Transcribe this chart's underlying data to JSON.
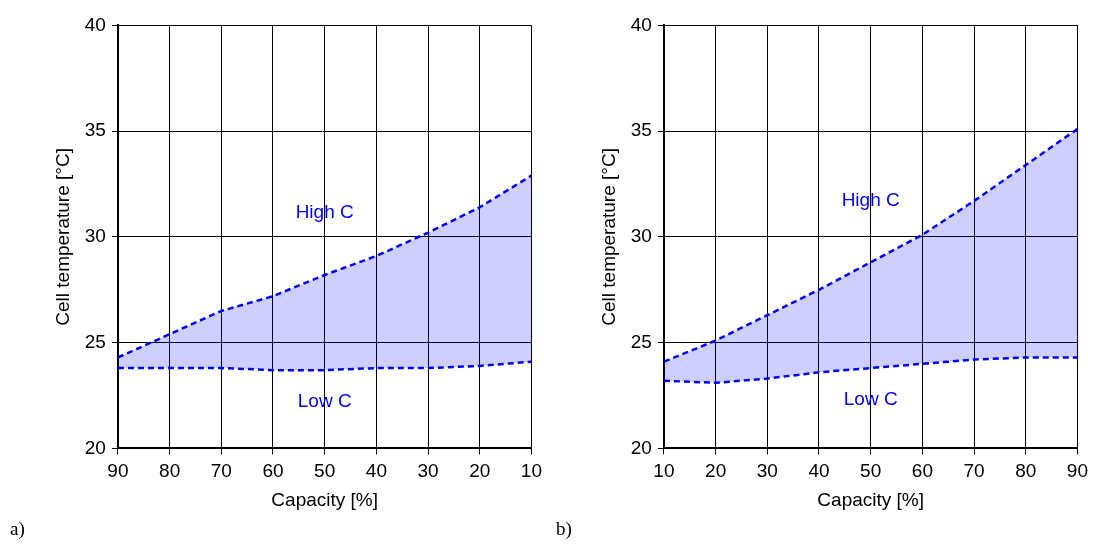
{
  "chart_data": [
    {
      "type": "line",
      "xlabel": "Capacity [%]",
      "ylabel": "Cell temperature [°C]",
      "xlim": [
        90,
        10
      ],
      "xticks": [
        90,
        80,
        70,
        60,
        50,
        40,
        30,
        20,
        10
      ],
      "ylim": [
        20,
        40
      ],
      "yticks": [
        20,
        25,
        30,
        35,
        40
      ],
      "grid": true,
      "line_style": "dashed",
      "marker": "none",
      "series": [
        {
          "name": "High C",
          "color": "#0000ff",
          "x": [
            90,
            80,
            70,
            60,
            50,
            40,
            30,
            20,
            10
          ],
          "values": [
            24.3,
            25.4,
            26.5,
            27.2,
            28.2,
            29.1,
            30.2,
            31.4,
            32.9
          ],
          "lower": [
            23.8,
            23.8,
            23.8,
            23.7,
            23.7,
            23.8,
            23.8,
            23.9,
            24.1
          ],
          "upper": [
            24.3,
            25.4,
            26.5,
            27.2,
            28.2,
            29.1,
            30.2,
            31.4,
            32.9
          ]
        },
        {
          "name": "Low C",
          "color": "#0000ff",
          "x": [
            90,
            80,
            70,
            60,
            50,
            40,
            30,
            20,
            10
          ],
          "values": [
            23.8,
            23.8,
            23.8,
            23.7,
            23.7,
            23.8,
            23.8,
            23.9,
            24.1
          ]
        }
      ],
      "annotations": [
        "a)"
      ]
    },
    {
      "type": "line",
      "xlabel": "Capacity [%]",
      "ylabel": "Cell temperature [°C]",
      "xlim": [
        10,
        90
      ],
      "xticks": [
        10,
        20,
        30,
        40,
        50,
        60,
        70,
        80,
        90
      ],
      "ylim": [
        20,
        40
      ],
      "yticks": [
        20,
        25,
        30,
        35,
        40
      ],
      "grid": true,
      "line_style": "dashed",
      "marker": "none",
      "series": [
        {
          "name": "High C",
          "color": "#0000ff",
          "x": [
            10,
            20,
            30,
            40,
            50,
            60,
            70,
            80,
            90
          ],
          "values": [
            24.1,
            25.1,
            26.3,
            27.5,
            28.8,
            30.1,
            31.7,
            33.4,
            35.1
          ],
          "lower": [
            23.2,
            23.1,
            23.3,
            23.6,
            23.8,
            24.0,
            24.2,
            24.3,
            24.3
          ],
          "upper": [
            24.1,
            25.1,
            26.3,
            27.5,
            28.8,
            30.1,
            31.7,
            33.4,
            35.1
          ]
        },
        {
          "name": "Low C",
          "color": "#0000ff",
          "x": [
            10,
            20,
            30,
            40,
            50,
            60,
            70,
            80,
            90
          ],
          "values": [
            23.2,
            23.1,
            23.3,
            23.6,
            23.8,
            24.0,
            24.2,
            24.3,
            24.3
          ]
        }
      ],
      "annotations": [
        "b)"
      ]
    }
  ]
}
